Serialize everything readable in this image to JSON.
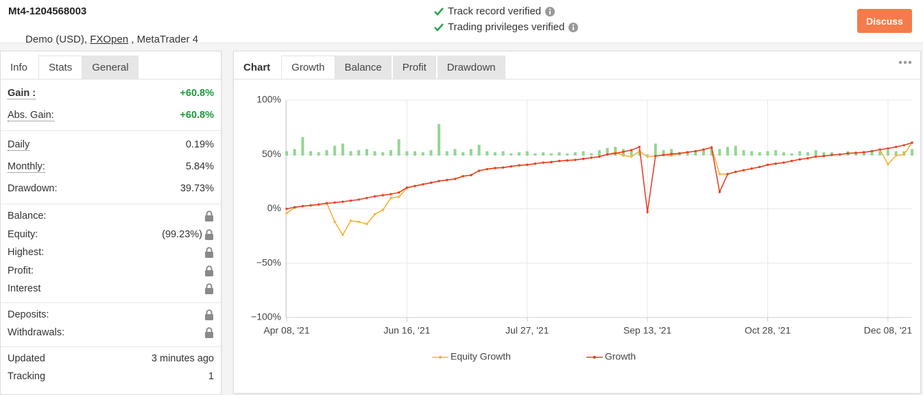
{
  "header": {
    "account": "Mt4-1204568003",
    "details": [
      "Demo (USD), ",
      "FXOpen",
      " , MetaTrader 4"
    ],
    "verifications": [
      "Track record verified",
      "Trading privileges verified"
    ],
    "button": "Discuss"
  },
  "stats_panel": {
    "tabs": [
      "Info",
      "Stats",
      "General"
    ],
    "active_tab": 1,
    "groups": [
      [
        {
          "label": "Gain :",
          "value": "+60.8%"
        },
        {
          "label": "Abs. Gain:",
          "value": "+60.8%"
        }
      ],
      [
        {
          "label": "Daily",
          "value": "0.19%"
        },
        {
          "label": "Monthly:",
          "value": "5.84%"
        },
        {
          "label": "Drawdown:",
          "value": "39.73%"
        }
      ],
      [
        {
          "label": "Balance:",
          "locked": true
        },
        {
          "label": "Equity:",
          "value": "(99.23%)",
          "locked": true
        },
        {
          "label": "Highest:",
          "locked": true
        },
        {
          "label": "Profit:",
          "locked": true
        },
        {
          "label": "Interest",
          "locked": true
        }
      ],
      [
        {
          "label": "Deposits:",
          "locked": true
        },
        {
          "label": "Withdrawals:",
          "locked": true
        }
      ],
      [
        {
          "label": "Updated",
          "value": "3 minutes ago"
        },
        {
          "label": "Tracking",
          "value": "1"
        }
      ]
    ]
  },
  "chart_panel": {
    "label": "Chart",
    "tabs": [
      "Growth",
      "Balance",
      "Profit",
      "Drawdown"
    ],
    "active_tab": 0
  },
  "chart_data": {
    "type": "line",
    "categories": [
      "Apr 08, '21",
      null,
      null,
      null,
      null,
      null,
      null,
      null,
      null,
      null,
      null,
      null,
      null,
      null,
      null,
      "Jun 16, '21",
      null,
      null,
      null,
      null,
      null,
      null,
      null,
      null,
      null,
      null,
      null,
      null,
      null,
      null,
      "Jul 27, '21",
      null,
      null,
      null,
      null,
      null,
      null,
      null,
      null,
      null,
      null,
      null,
      null,
      null,
      null,
      "Sep 13, '21",
      null,
      null,
      null,
      null,
      null,
      null,
      null,
      null,
      null,
      null,
      null,
      null,
      null,
      null,
      "Oct 28, '21",
      null,
      null,
      null,
      null,
      null,
      null,
      null,
      null,
      null,
      null,
      null,
      null,
      null,
      null,
      "Dec 08, '21",
      null,
      null,
      null
    ],
    "series": [
      {
        "name": "Equity Growth",
        "color": "#f5b335",
        "values": [
          -4,
          1,
          2.5,
          3,
          4,
          5.5,
          -12,
          -24,
          -11,
          -12,
          -14,
          -5,
          -1,
          10,
          11,
          19,
          21,
          22.5,
          24,
          25.5,
          26.5,
          27.5,
          30,
          31,
          35,
          36.5,
          37.5,
          38,
          39,
          40,
          40.5,
          41.5,
          42.5,
          43,
          44,
          44.5,
          45,
          46,
          47,
          48,
          50,
          52,
          49,
          48,
          53,
          48,
          48.5,
          49.5,
          49,
          51,
          52,
          53,
          54.5,
          56.5,
          32,
          32,
          34,
          35.5,
          37,
          38.5,
          40.5,
          41.5,
          42.5,
          44,
          45.5,
          46.5,
          48,
          48.5,
          49.5,
          50,
          51,
          51.5,
          52,
          53,
          54.5,
          41,
          49,
          50,
          61
        ]
      },
      {
        "name": "Growth",
        "color": "#e8412a",
        "values": [
          0,
          1.5,
          2.5,
          3.2,
          4,
          5,
          5.8,
          6.5,
          7.5,
          8.5,
          10,
          11.5,
          12.5,
          13.5,
          15,
          19.5,
          21,
          22.5,
          24,
          25.5,
          26.5,
          27.5,
          30,
          31,
          35,
          36.5,
          37.5,
          38,
          39,
          40,
          40.5,
          41.5,
          42.5,
          43,
          44,
          44.5,
          45,
          46,
          47,
          48,
          50,
          51,
          52.5,
          54,
          57,
          -3,
          48.5,
          49.5,
          50.5,
          51,
          52,
          53,
          54.5,
          56.5,
          15.5,
          32,
          34,
          35.5,
          37,
          38.5,
          40.5,
          41.5,
          42.5,
          44,
          45.5,
          46.5,
          48,
          48.5,
          49.5,
          50,
          51,
          51.5,
          52,
          53,
          54.5,
          55.5,
          57,
          58.5,
          60.8
        ]
      }
    ],
    "bars": {
      "color": "#93d593",
      "base": 49,
      "values": [
        53,
        55,
        66,
        53,
        52,
        54,
        58,
        60,
        53,
        54,
        55,
        53,
        52,
        54,
        64,
        53,
        53,
        52,
        54,
        78,
        53,
        55,
        52,
        55,
        59,
        53,
        52,
        53,
        51,
        52,
        53,
        51,
        52,
        51,
        52,
        51,
        52,
        53,
        51,
        54,
        56,
        57,
        55,
        54,
        53,
        50,
        60,
        54,
        55,
        52,
        53,
        52,
        54,
        56,
        55,
        57,
        58,
        54,
        53,
        52,
        53,
        54,
        52,
        51,
        53,
        52,
        54,
        52,
        52,
        51,
        53,
        52,
        53,
        54,
        53,
        54,
        53,
        53,
        55
      ]
    },
    "ylim": [
      -100,
      100
    ],
    "yticks": [
      {
        "value": -100,
        "label": "−100%"
      },
      {
        "value": -50,
        "label": "−50%"
      },
      {
        "value": 0,
        "label": "0%"
      },
      {
        "value": 50,
        "label": "50%"
      },
      {
        "value": 100,
        "label": "100%"
      }
    ],
    "grid": true
  }
}
